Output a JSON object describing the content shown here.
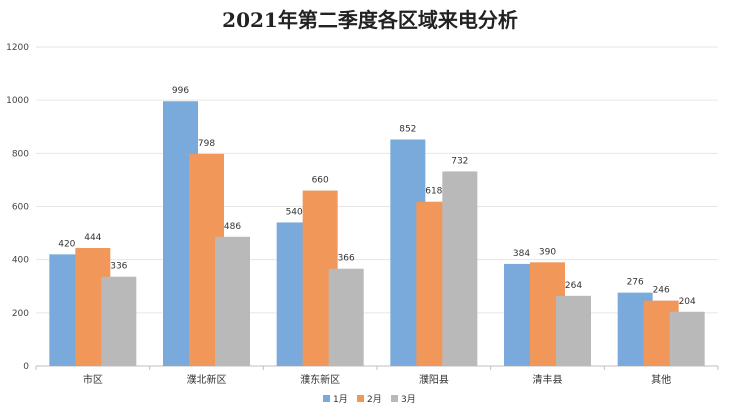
{
  "chart_data": {
    "type": "bar",
    "title": "2021年第二季度各区域来电分析",
    "xlabel": "",
    "ylabel": "",
    "categories": [
      "市区",
      "濮北新区",
      "濮东新区",
      "濮阳县",
      "清丰县",
      "其他"
    ],
    "series": [
      {
        "name": "1月",
        "color": "#7aaadb",
        "values": [
          420,
          996,
          540,
          852,
          384,
          276
        ]
      },
      {
        "name": "2月",
        "color": "#f1975a",
        "values": [
          444,
          798,
          660,
          618,
          390,
          246
        ]
      },
      {
        "name": "3月",
        "color": "#b9b9b9",
        "values": [
          336,
          486,
          366,
          732,
          264,
          204
        ]
      }
    ],
    "ylim": [
      0,
      1200
    ],
    "yticks": [
      0,
      200,
      400,
      600,
      800,
      1000,
      1200
    ],
    "grid": true,
    "legend_position": "bottom"
  }
}
